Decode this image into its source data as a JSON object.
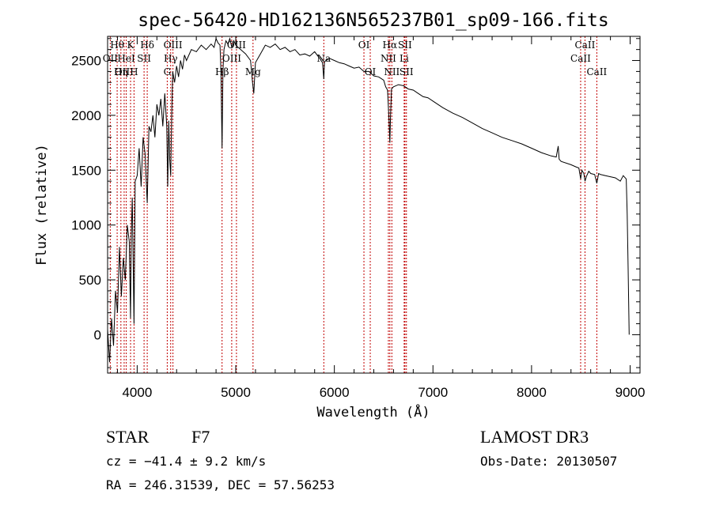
{
  "chart_data": {
    "type": "line",
    "title": "spec-56420-HD162136N565237B01_sp09-166.fits",
    "xlabel": "Wavelength (Å)",
    "ylabel": "Flux (relative)",
    "xlim": [
      3700,
      9100
    ],
    "ylim": [
      -350,
      2720
    ],
    "xticks": [
      4000,
      5000,
      6000,
      7000,
      8000,
      9000
    ],
    "yticks": [
      0,
      500,
      1000,
      1500,
      2000,
      2500
    ],
    "grid": false,
    "series": [
      {
        "name": "flux",
        "x": [
          3700,
          3720,
          3740,
          3760,
          3780,
          3800,
          3820,
          3840,
          3860,
          3880,
          3900,
          3920,
          3933,
          3940,
          3950,
          3968,
          3980,
          4000,
          4020,
          4040,
          4060,
          4080,
          4102,
          4120,
          4140,
          4160,
          4180,
          4200,
          4220,
          4240,
          4260,
          4280,
          4300,
          4310,
          4320,
          4330,
          4340,
          4350,
          4360,
          4380,
          4400,
          4420,
          4440,
          4460,
          4480,
          4500,
          4550,
          4600,
          4650,
          4700,
          4750,
          4780,
          4800,
          4820,
          4840,
          4850,
          4861,
          4870,
          4880,
          4900,
          4920,
          4940,
          4960,
          4980,
          5000,
          5050,
          5100,
          5150,
          5170,
          5183,
          5200,
          5250,
          5300,
          5350,
          5400,
          5450,
          5500,
          5550,
          5600,
          5650,
          5700,
          5750,
          5800,
          5850,
          5880,
          5893,
          5900,
          5950,
          6000,
          6050,
          6100,
          6150,
          6200,
          6250,
          6300,
          6350,
          6400,
          6450,
          6500,
          6520,
          6540,
          6555,
          6563,
          6570,
          6580,
          6600,
          6650,
          6700,
          6750,
          6800,
          6850,
          6900,
          6950,
          7000,
          7100,
          7200,
          7300,
          7400,
          7500,
          7600,
          7700,
          7800,
          7900,
          8000,
          8100,
          8200,
          8250,
          8270,
          8280,
          8300,
          8400,
          8450,
          8480,
          8498,
          8510,
          8530,
          8542,
          8555,
          8580,
          8600,
          8640,
          8662,
          8680,
          8700,
          8750,
          8800,
          8850,
          8900,
          8930,
          8960,
          8970,
          8980,
          8990
        ],
        "values": [
          50,
          -250,
          150,
          -100,
          400,
          200,
          800,
          350,
          700,
          500,
          1000,
          850,
          150,
          900,
          1250,
          100,
          1400,
          1450,
          1700,
          1350,
          1800,
          1650,
          1200,
          1900,
          1850,
          2000,
          1800,
          2100,
          2000,
          2150,
          1900,
          2200,
          1900,
          1350,
          1950,
          1600,
          1450,
          2000,
          2400,
          2300,
          2450,
          2350,
          2500,
          2420,
          2550,
          2500,
          2600,
          2580,
          2640,
          2600,
          2650,
          2620,
          2700,
          2660,
          2640,
          2400,
          1700,
          2400,
          2600,
          2680,
          2650,
          2700,
          2620,
          2680,
          2640,
          2600,
          2560,
          2500,
          2300,
          2200,
          2480,
          2560,
          2640,
          2620,
          2650,
          2600,
          2620,
          2580,
          2600,
          2550,
          2560,
          2540,
          2580,
          2520,
          2480,
          2330,
          2490,
          2520,
          2500,
          2480,
          2470,
          2450,
          2430,
          2440,
          2400,
          2400,
          2360,
          2350,
          2320,
          2260,
          2230,
          1950,
          1750,
          2000,
          2240,
          2260,
          2280,
          2270,
          2240,
          2230,
          2200,
          2170,
          2160,
          2130,
          2070,
          2020,
          1980,
          1930,
          1880,
          1840,
          1800,
          1770,
          1740,
          1700,
          1660,
          1630,
          1620,
          1720,
          1600,
          1580,
          1550,
          1530,
          1520,
          1420,
          1500,
          1470,
          1400,
          1440,
          1490,
          1470,
          1460,
          1380,
          1470,
          1460,
          1450,
          1440,
          1430,
          1400,
          1450,
          1420,
          1100,
          600,
          0
        ]
      }
    ],
    "lines": [
      {
        "label": "Hθ",
        "x": 3797,
        "row": 1
      },
      {
        "label": "OII",
        "x": 3727,
        "row": 2
      },
      {
        "label": "OIII",
        "x": 3868,
        "row": 3
      },
      {
        "label": "K",
        "x": 3933,
        "row": 1
      },
      {
        "label": "HeI",
        "x": 3889,
        "row": 2
      },
      {
        "label": "Hη",
        "x": 3835,
        "row": 3
      },
      {
        "label": "SII",
        "x": 4070,
        "row": 2
      },
      {
        "label": "H",
        "x": 3968,
        "row": 3
      },
      {
        "label": "Hδ",
        "x": 4102,
        "row": 1
      },
      {
        "label": "OIII",
        "x": 4363,
        "row": 1
      },
      {
        "label": "Hγ",
        "x": 4340,
        "row": 2
      },
      {
        "label": "G",
        "x": 4305,
        "row": 3
      },
      {
        "label": "OIII",
        "x": 5007,
        "row": 1
      },
      {
        "label": "OIII",
        "x": 4959,
        "row": 2
      },
      {
        "label": "Hβ",
        "x": 4861,
        "row": 3
      },
      {
        "label": "Mg",
        "x": 5175,
        "row": 3
      },
      {
        "label": "Na",
        "x": 5893,
        "row": 2
      },
      {
        "label": "OI",
        "x": 6300,
        "row": 1
      },
      {
        "label": "OI",
        "x": 6364,
        "row": 3
      },
      {
        "label": "Hα",
        "x": 6563,
        "row": 1
      },
      {
        "label": "SII",
        "x": 6716,
        "row": 1
      },
      {
        "label": "NII",
        "x": 6548,
        "row": 2
      },
      {
        "label": "Li",
        "x": 6708,
        "row": 2
      },
      {
        "label": "NII",
        "x": 6583,
        "row": 3
      },
      {
        "label": "SII",
        "x": 6731,
        "row": 3
      },
      {
        "label": "CaII",
        "x": 8542,
        "row": 1
      },
      {
        "label": "CaII",
        "x": 8498,
        "row": 2
      },
      {
        "label": "CaII",
        "x": 8662,
        "row": 3
      }
    ]
  },
  "info": {
    "object_type": "STAR",
    "subclass": "F7",
    "survey": "LAMOST DR3",
    "redshift": "cz = −41.4 ± 9.2 km/s",
    "obs_date": "Obs-Date: 20130507",
    "coords": "RA = 246.31539, DEC =  57.56253"
  }
}
